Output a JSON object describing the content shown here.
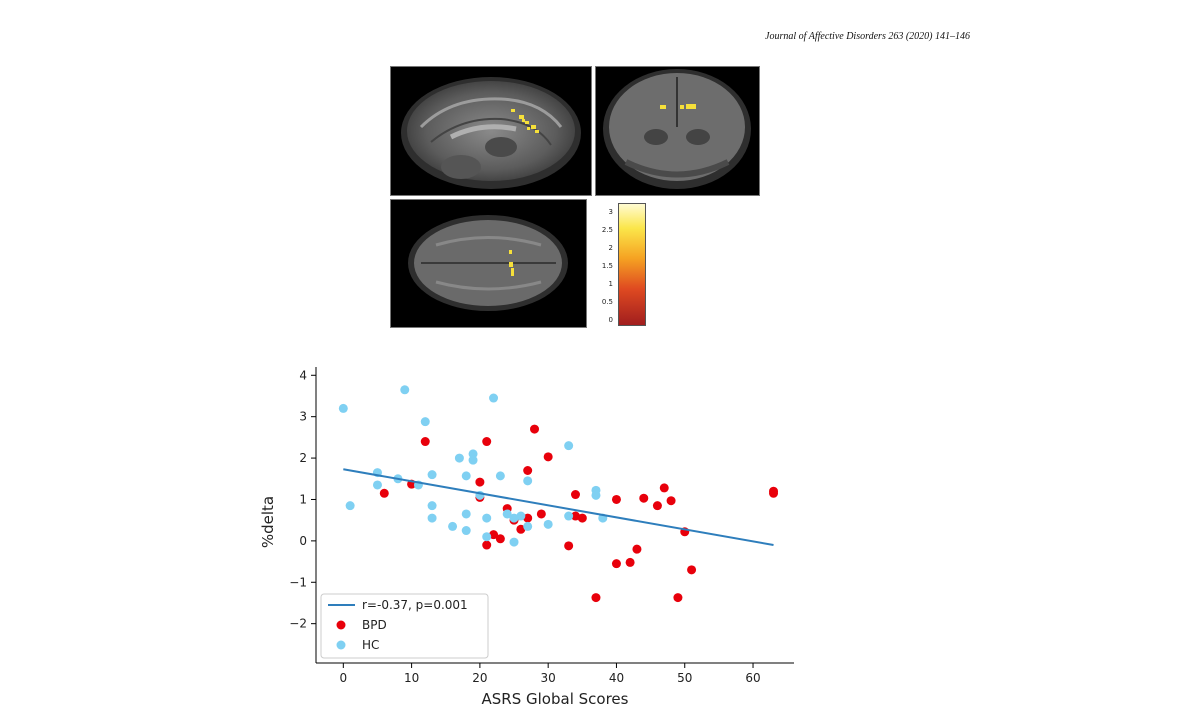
{
  "header": {
    "citation": "Journal of Affective Disorders 263 (2020) 141–146"
  },
  "brain_figure": {
    "views": [
      "sagittal",
      "coronal",
      "axial"
    ],
    "colorbar": {
      "ticks": [
        "3",
        "2.5",
        "2",
        "1.5",
        "1",
        "0.5",
        "0"
      ],
      "colors": [
        "#a11e1e",
        "#df4a21",
        "#f5a222",
        "#fbe64a",
        "#fffbd2"
      ]
    }
  },
  "chart_data": {
    "type": "scatter",
    "xlabel": "ASRS Global Scores",
    "ylabel": "%delta",
    "xlim": [
      -4,
      66
    ],
    "ylim": [
      -2.95,
      4.2
    ],
    "xticks": [
      0,
      10,
      20,
      30,
      40,
      50,
      60
    ],
    "yticks": [
      -2,
      -1,
      0,
      1,
      2,
      3,
      4
    ],
    "ytick_labels": [
      "−2",
      "−1",
      "0",
      "1",
      "2",
      "3",
      "4"
    ],
    "legend_position": "lower-left",
    "fit_line": {
      "label": "r=-0.37, p=0.001",
      "color": "#2e7ebc",
      "x": [
        0,
        63
      ],
      "y": [
        1.73,
        -0.1
      ]
    },
    "series": [
      {
        "name": "BPD",
        "color": "#e8000b",
        "points": [
          [
            6,
            1.15
          ],
          [
            10,
            1.37
          ],
          [
            12,
            2.4
          ],
          [
            20,
            1.05
          ],
          [
            20,
            1.42
          ],
          [
            21,
            2.4
          ],
          [
            21,
            -0.1
          ],
          [
            22,
            0.15
          ],
          [
            23,
            0.05
          ],
          [
            24,
            0.78
          ],
          [
            25,
            0.5
          ],
          [
            26,
            0.28
          ],
          [
            27,
            0.55
          ],
          [
            27,
            1.7
          ],
          [
            28,
            2.7
          ],
          [
            29,
            0.65
          ],
          [
            30,
            2.03
          ],
          [
            33,
            -0.12
          ],
          [
            34,
            1.12
          ],
          [
            34,
            0.6
          ],
          [
            35,
            0.55
          ],
          [
            37,
            -1.37
          ],
          [
            40,
            1.0
          ],
          [
            40,
            -0.55
          ],
          [
            42,
            -0.52
          ],
          [
            43,
            -0.2
          ],
          [
            44,
            1.03
          ],
          [
            46,
            0.85
          ],
          [
            47,
            1.28
          ],
          [
            48,
            0.97
          ],
          [
            49,
            -1.37
          ],
          [
            50,
            0.22
          ],
          [
            51,
            -0.7
          ],
          [
            63,
            1.2
          ],
          [
            63,
            1.15
          ]
        ]
      },
      {
        "name": "HC",
        "color": "#7fd0f2",
        "points": [
          [
            0,
            3.2
          ],
          [
            1,
            0.85
          ],
          [
            5,
            1.65
          ],
          [
            5,
            1.35
          ],
          [
            8,
            1.5
          ],
          [
            9,
            3.65
          ],
          [
            11,
            1.35
          ],
          [
            12,
            2.88
          ],
          [
            13,
            1.6
          ],
          [
            13,
            0.85
          ],
          [
            13,
            0.55
          ],
          [
            16,
            0.35
          ],
          [
            17,
            2.0
          ],
          [
            18,
            1.57
          ],
          [
            18,
            0.65
          ],
          [
            18,
            0.25
          ],
          [
            19,
            2.1
          ],
          [
            19,
            1.95
          ],
          [
            20,
            1.1
          ],
          [
            21,
            0.55
          ],
          [
            21,
            0.1
          ],
          [
            22,
            3.45
          ],
          [
            23,
            1.57
          ],
          [
            24,
            0.65
          ],
          [
            25,
            0.55
          ],
          [
            25,
            -0.03
          ],
          [
            26,
            0.6
          ],
          [
            27,
            1.45
          ],
          [
            27,
            0.35
          ],
          [
            33,
            2.3
          ],
          [
            33,
            0.6
          ],
          [
            37,
            1.22
          ],
          [
            37,
            1.1
          ],
          [
            38,
            0.55
          ],
          [
            30,
            0.4
          ]
        ]
      }
    ]
  }
}
